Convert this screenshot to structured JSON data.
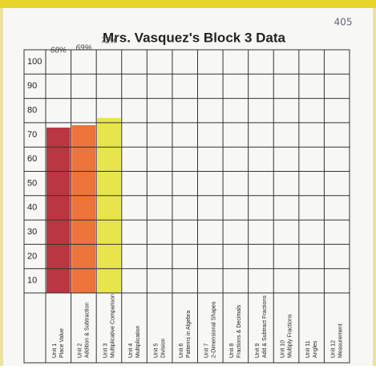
{
  "chart_data": {
    "type": "bar",
    "title": "Mrs. Vasquez's Block 3 Data",
    "annotation": "405",
    "categories": [
      [
        "Unit 1",
        "Place Value"
      ],
      [
        "Unit 2",
        "Addition & Subtraction"
      ],
      [
        "Unit 3",
        "Multiplicative Comparison"
      ],
      [
        "Unit 4",
        "Multiplication"
      ],
      [
        "Unit 5",
        "Division"
      ],
      [
        "Unit 6",
        "Patterns in Algebra"
      ],
      [
        "Unit 7",
        "2-Dimensional Shapes"
      ],
      [
        "Unit 8",
        "Fractions & Decimals"
      ],
      [
        "Unit 9",
        "Add & Subtract Fractions"
      ],
      [
        "Unit 10",
        "Multiply Fractions"
      ],
      [
        "Unit 11",
        "Angles"
      ],
      [
        "Unit 12",
        "Measurement"
      ]
    ],
    "values": [
      68,
      69,
      72,
      null,
      null,
      null,
      null,
      null,
      null,
      null,
      null,
      null
    ],
    "value_labels": [
      "68%",
      "69%",
      "72%",
      null,
      null,
      null,
      null,
      null,
      null,
      null,
      null,
      null
    ],
    "colors": [
      "#b3202c",
      "#ea6426",
      "#e6e23a",
      null,
      null,
      null,
      null,
      null,
      null,
      null,
      null,
      null
    ],
    "ylim": [
      0,
      100
    ],
    "yticks": [
      10,
      20,
      30,
      40,
      50,
      60,
      70,
      80,
      90,
      100
    ],
    "grid": true
  }
}
